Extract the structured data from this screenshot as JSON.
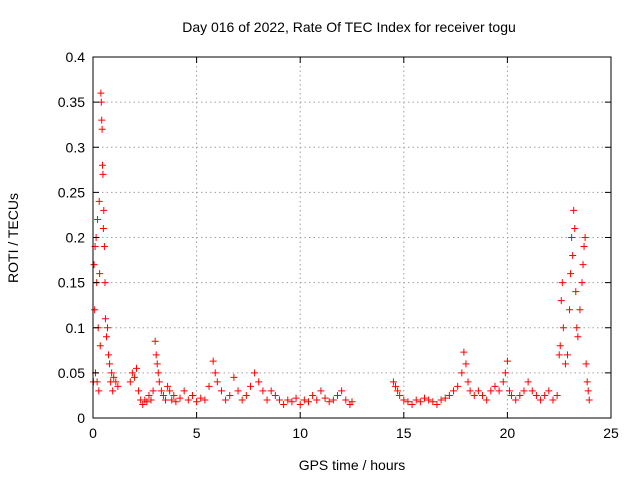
{
  "chart_data": {
    "type": "scatter",
    "title": "Day 016 of 2022, Rate Of TEC Index for receiver togu",
    "xlabel": "GPS time / hours",
    "ylabel": "ROTI / TECUs",
    "xlim": [
      0,
      25
    ],
    "ylim": [
      0,
      0.4
    ],
    "xticks": [
      0,
      5,
      10,
      15,
      20,
      25
    ],
    "yticks": [
      0,
      0.05,
      0.1,
      0.15,
      0.2,
      0.25,
      0.3,
      0.35,
      0.4
    ],
    "xtick_labels": [
      "0",
      "5",
      "10",
      "15",
      "20",
      "25"
    ],
    "ytick_labels": [
      "0",
      "0.05",
      "0.1",
      "0.15",
      "0.2",
      "0.25",
      "0.3",
      "0.35",
      "0.4"
    ],
    "grid": true,
    "marker": "+",
    "color": "#ff0000",
    "series": [
      {
        "points": [
          [
            0.02,
            0.04
          ],
          [
            0.05,
            0.17
          ],
          [
            0.08,
            0.12
          ],
          [
            0.1,
            0.19
          ],
          [
            0.12,
            0.05
          ],
          [
            0.15,
            0.2
          ],
          [
            0.18,
            0.15
          ],
          [
            0.2,
            0.04
          ],
          [
            0.22,
            0.22
          ],
          [
            0.25,
            0.1
          ],
          [
            0.28,
            0.03
          ],
          [
            0.3,
            0.24
          ],
          [
            0.32,
            0.16
          ],
          [
            0.35,
            0.08
          ],
          [
            0.38,
            0.36
          ],
          [
            0.4,
            0.35
          ],
          [
            0.42,
            0.33
          ],
          [
            0.44,
            0.32
          ],
          [
            0.46,
            0.28
          ],
          [
            0.48,
            0.27
          ],
          [
            0.5,
            0.21
          ],
          [
            0.52,
            0.23
          ],
          [
            0.55,
            0.19
          ],
          [
            0.58,
            0.15
          ],
          [
            0.6,
            0.11
          ],
          [
            0.65,
            0.09
          ],
          [
            0.7,
            0.1
          ],
          [
            0.75,
            0.07
          ],
          [
            0.8,
            0.06
          ],
          [
            0.85,
            0.04
          ],
          [
            0.9,
            0.05
          ],
          [
            0.95,
            0.03
          ],
          [
            1.0,
            0.045
          ],
          [
            1.1,
            0.04
          ],
          [
            1.2,
            0.035
          ],
          [
            1.8,
            0.04
          ],
          [
            1.9,
            0.05
          ],
          [
            2.0,
            0.045
          ],
          [
            2.1,
            0.055
          ],
          [
            2.2,
            0.03
          ],
          [
            2.3,
            0.02
          ],
          [
            2.4,
            0.015
          ],
          [
            2.5,
            0.02
          ],
          [
            2.6,
            0.018
          ],
          [
            2.7,
            0.025
          ],
          [
            2.8,
            0.02
          ],
          [
            2.9,
            0.03
          ],
          [
            3.0,
            0.085
          ],
          [
            3.05,
            0.07
          ],
          [
            3.1,
            0.06
          ],
          [
            3.15,
            0.05
          ],
          [
            3.2,
            0.04
          ],
          [
            3.3,
            0.03
          ],
          [
            3.4,
            0.025
          ],
          [
            3.5,
            0.02
          ],
          [
            3.6,
            0.035
          ],
          [
            3.7,
            0.03
          ],
          [
            3.8,
            0.02
          ],
          [
            3.9,
            0.025
          ],
          [
            4.0,
            0.018
          ],
          [
            4.2,
            0.022
          ],
          [
            4.4,
            0.03
          ],
          [
            4.6,
            0.02
          ],
          [
            4.8,
            0.025
          ],
          [
            5.0,
            0.018
          ],
          [
            5.2,
            0.022
          ],
          [
            5.4,
            0.02
          ],
          [
            5.6,
            0.035
          ],
          [
            5.8,
            0.063
          ],
          [
            5.9,
            0.05
          ],
          [
            6.0,
            0.04
          ],
          [
            6.2,
            0.03
          ],
          [
            6.4,
            0.02
          ],
          [
            6.6,
            0.025
          ],
          [
            6.8,
            0.045
          ],
          [
            7.0,
            0.03
          ],
          [
            7.2,
            0.02
          ],
          [
            7.4,
            0.025
          ],
          [
            7.6,
            0.035
          ],
          [
            7.8,
            0.05
          ],
          [
            8.0,
            0.04
          ],
          [
            8.2,
            0.03
          ],
          [
            8.4,
            0.02
          ],
          [
            8.6,
            0.03
          ],
          [
            8.8,
            0.025
          ],
          [
            9.0,
            0.02
          ],
          [
            9.2,
            0.015
          ],
          [
            9.4,
            0.02
          ],
          [
            9.6,
            0.018
          ],
          [
            9.8,
            0.022
          ],
          [
            10.0,
            0.015
          ],
          [
            10.2,
            0.02
          ],
          [
            10.4,
            0.018
          ],
          [
            10.6,
            0.025
          ],
          [
            10.8,
            0.02
          ],
          [
            11.0,
            0.03
          ],
          [
            11.2,
            0.022
          ],
          [
            11.4,
            0.018
          ],
          [
            11.6,
            0.02
          ],
          [
            11.8,
            0.025
          ],
          [
            12.0,
            0.03
          ],
          [
            12.2,
            0.02
          ],
          [
            12.4,
            0.015
          ],
          [
            12.5,
            0.018
          ],
          [
            14.5,
            0.04
          ],
          [
            14.6,
            0.035
          ],
          [
            14.7,
            0.03
          ],
          [
            14.8,
            0.025
          ],
          [
            15.0,
            0.02
          ],
          [
            15.2,
            0.018
          ],
          [
            15.4,
            0.015
          ],
          [
            15.6,
            0.02
          ],
          [
            15.8,
            0.018
          ],
          [
            16.0,
            0.022
          ],
          [
            16.2,
            0.02
          ],
          [
            16.4,
            0.018
          ],
          [
            16.6,
            0.015
          ],
          [
            16.8,
            0.02
          ],
          [
            17.0,
            0.022
          ],
          [
            17.2,
            0.025
          ],
          [
            17.4,
            0.03
          ],
          [
            17.6,
            0.035
          ],
          [
            17.8,
            0.05
          ],
          [
            17.9,
            0.073
          ],
          [
            18.0,
            0.06
          ],
          [
            18.1,
            0.04
          ],
          [
            18.2,
            0.03
          ],
          [
            18.4,
            0.025
          ],
          [
            18.6,
            0.03
          ],
          [
            18.8,
            0.025
          ],
          [
            19.0,
            0.02
          ],
          [
            19.2,
            0.03
          ],
          [
            19.4,
            0.035
          ],
          [
            19.6,
            0.03
          ],
          [
            19.8,
            0.04
          ],
          [
            19.9,
            0.05
          ],
          [
            20.0,
            0.063
          ],
          [
            20.1,
            0.03
          ],
          [
            20.2,
            0.025
          ],
          [
            20.4,
            0.02
          ],
          [
            20.6,
            0.025
          ],
          [
            20.8,
            0.03
          ],
          [
            21.0,
            0.04
          ],
          [
            21.2,
            0.03
          ],
          [
            21.4,
            0.025
          ],
          [
            21.6,
            0.02
          ],
          [
            21.8,
            0.025
          ],
          [
            22.0,
            0.03
          ],
          [
            22.2,
            0.02
          ],
          [
            22.4,
            0.025
          ],
          [
            22.5,
            0.07
          ],
          [
            22.55,
            0.08
          ],
          [
            22.6,
            0.13
          ],
          [
            22.65,
            0.15
          ],
          [
            22.7,
            0.1
          ],
          [
            22.8,
            0.06
          ],
          [
            22.9,
            0.07
          ],
          [
            23.0,
            0.12
          ],
          [
            23.05,
            0.16
          ],
          [
            23.1,
            0.2
          ],
          [
            23.15,
            0.18
          ],
          [
            23.2,
            0.23
          ],
          [
            23.25,
            0.21
          ],
          [
            23.3,
            0.14
          ],
          [
            23.35,
            0.1
          ],
          [
            23.4,
            0.09
          ],
          [
            23.5,
            0.12
          ],
          [
            23.6,
            0.15
          ],
          [
            23.65,
            0.17
          ],
          [
            23.7,
            0.19
          ],
          [
            23.75,
            0.2
          ],
          [
            23.8,
            0.06
          ],
          [
            23.85,
            0.04
          ],
          [
            23.9,
            0.03
          ],
          [
            23.95,
            0.02
          ]
        ]
      }
    ]
  }
}
